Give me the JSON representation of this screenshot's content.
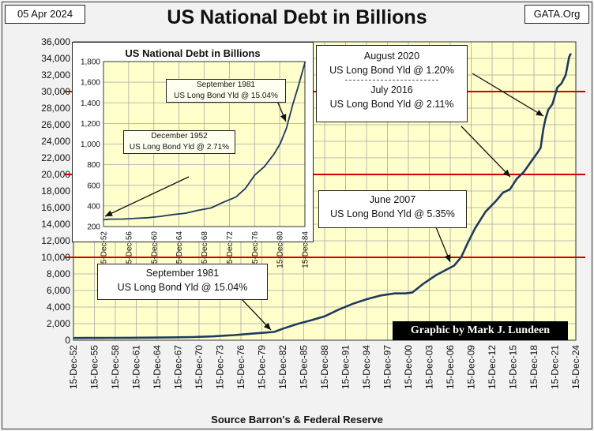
{
  "header": {
    "date": "05 Apr 2024",
    "title": "US National Debt in Billions",
    "site": "GATA.Org"
  },
  "footer": {
    "source": "Source Barron's & Federal Reserve"
  },
  "credit": "Graphic by Mark J. Lundeen",
  "annotations": {
    "sep1981": [
      "September 1981",
      "US Long Bond Yld @ 15.04%"
    ],
    "jun2007": [
      "June 2007",
      "US Long Bond Yld @ 5.35%"
    ],
    "aug2020": [
      "August 2020",
      "US Long Bond Yld @ 1.20%"
    ],
    "jul2016": [
      "July 2016",
      "US Long Bond Yld @ 2.11%"
    ]
  },
  "inset": {
    "title": "US National Debt in Billions",
    "annotations": {
      "sep1981": [
        "September 1981",
        "US Long Bond Yld @ 15.04%"
      ],
      "dec1952": [
        "December 1952",
        "US Long Bond Yld @ 2.71%"
      ]
    }
  },
  "colors": {
    "plot_bg": "#ffffcc",
    "grid": "#a8a8a8",
    "series_line": "#1f3a5f",
    "reference_line": "#cc0000"
  },
  "chart_data": [
    {
      "type": "line",
      "title": "US National Debt in Billions",
      "xlabel": "",
      "ylabel": "",
      "ylim": [
        0,
        36000
      ],
      "yticks": [
        0,
        2000,
        4000,
        6000,
        8000,
        10000,
        12000,
        14000,
        16000,
        18000,
        20000,
        22000,
        24000,
        26000,
        28000,
        30000,
        32000,
        34000,
        36000
      ],
      "ytick_labels": [
        "0",
        "2,000",
        "4,000",
        "6,000",
        "8,000",
        "10,000",
        "12,000",
        "14,000",
        "16,000",
        "18,000",
        "20,000",
        "22,000",
        "24,000",
        "26,000",
        "28,000",
        "30,000",
        "32,000",
        "34,000",
        "36,000"
      ],
      "xticks": [
        1952.95,
        1955.95,
        1958.95,
        1961.95,
        1964.95,
        1967.95,
        1970.95,
        1973.95,
        1976.95,
        1979.95,
        1982.95,
        1985.95,
        1988.95,
        1991.95,
        1994.95,
        1997.95,
        2000.95,
        2003.95,
        2006.95,
        2009.95,
        2012.95,
        2015.95,
        2018.95,
        2021.95,
        2024.95
      ],
      "xtick_labels": [
        "15-Dec-52",
        "15-Dec-55",
        "15-Dec-58",
        "15-Dec-61",
        "15-Dec-64",
        "15-Dec-67",
        "15-Dec-70",
        "15-Dec-73",
        "15-Dec-76",
        "15-Dec-79",
        "15-Dec-82",
        "15-Dec-85",
        "15-Dec-88",
        "15-Dec-91",
        "15-Dec-94",
        "15-Dec-97",
        "15-Dec-00",
        "15-Dec-03",
        "15-Dec-06",
        "15-Dec-09",
        "15-Dec-12",
        "15-Dec-15",
        "15-Dec-18",
        "15-Dec-21",
        "15-Dec-24"
      ],
      "grid": true,
      "reference_lines_y": [
        10000,
        20000,
        30000
      ],
      "series": [
        {
          "x": [
            1952.95,
            1955.0,
            1958.0,
            1961.0,
            1964.0,
            1967.0,
            1970.0,
            1973.0,
            1976.0,
            1979.0,
            1980.5,
            1981.7,
            1983.0,
            1985.0,
            1987.0,
            1989.0,
            1991.0,
            1993.0,
            1995.0,
            1997.0,
            1999.0,
            2000.5,
            2001.5,
            2003.0,
            2005.0,
            2007.5,
            2008.5,
            2009.5,
            2010.5,
            2012.0,
            2013.5,
            2014.5,
            2015.5,
            2016.5,
            2017.5,
            2018.5,
            2019.5,
            2019.9,
            2020.3,
            2020.6,
            2021.0,
            2021.6,
            2022.3,
            2022.9,
            2023.5,
            2024.0,
            2024.26
          ],
          "y": [
            266,
            274,
            282,
            296,
            317,
            345,
            383,
            465,
            620,
            830,
            920,
            1000,
            1400,
            1950,
            2400,
            2900,
            3700,
            4400,
            4950,
            5400,
            5650,
            5650,
            5750,
            6750,
            7900,
            9000,
            10000,
            11800,
            13500,
            15500,
            16800,
            17800,
            18200,
            19500,
            20300,
            21500,
            22700,
            23200,
            25500,
            26700,
            27800,
            28500,
            30500,
            31000,
            32000,
            34200,
            34600
          ]
        }
      ]
    },
    {
      "type": "line",
      "title": "US National Debt in Billions",
      "ylim": [
        200,
        1800
      ],
      "yticks": [
        200,
        400,
        600,
        800,
        1000,
        1200,
        1400,
        1600,
        1800
      ],
      "ytick_labels": [
        "200",
        "400",
        "600",
        "800",
        "1,000",
        "1,200",
        "1,400",
        "1,600",
        "1,800"
      ],
      "xticks": [
        1952.95,
        1956.95,
        1960.95,
        1964.95,
        1968.95,
        1972.95,
        1976.95,
        1980.95,
        1984.95
      ],
      "xtick_labels": [
        "15-Dec-52",
        "15-Dec-56",
        "15-Dec-60",
        "15-Dec-64",
        "15-Dec-68",
        "15-Dec-72",
        "15-Dec-76",
        "15-Dec-80",
        "15-Dec-84"
      ],
      "grid": true,
      "series": [
        {
          "x": [
            1952.95,
            1954.0,
            1956.0,
            1958.0,
            1960.0,
            1962.0,
            1964.0,
            1966.0,
            1968.0,
            1970.0,
            1972.0,
            1974.0,
            1975.5,
            1977.0,
            1978.5,
            1980.0,
            1981.0,
            1982.0,
            1983.0,
            1984.0,
            1985.0
          ],
          "y": [
            266,
            272,
            273,
            280,
            286,
            299,
            316,
            329,
            358,
            380,
            436,
            486,
            570,
            700,
            780,
            900,
            1000,
            1150,
            1380,
            1580,
            1800
          ]
        }
      ]
    }
  ]
}
